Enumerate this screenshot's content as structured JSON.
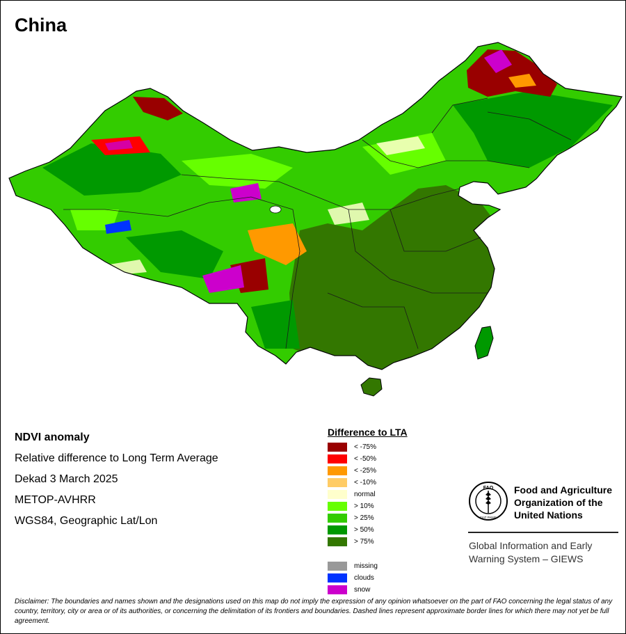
{
  "title": "China",
  "info_lines": [
    "NDVI anomaly",
    "Relative difference to Long Term Average",
    "Dekad 3 March 2025",
    "METOP-AVHRR",
    "WGS84, Geographic Lat/Lon"
  ],
  "legend": {
    "title": "Difference to LTA",
    "classes": [
      {
        "label": "< -75%",
        "color": "#990000"
      },
      {
        "label": "< -50%",
        "color": "#ff0000"
      },
      {
        "label": "< -25%",
        "color": "#ff9900"
      },
      {
        "label": "< -10%",
        "color": "#ffcc66"
      },
      {
        "label": "normal",
        "color": "#ffffcc"
      },
      {
        "label": "> 10%",
        "color": "#66ff00"
      },
      {
        "label": "> 25%",
        "color": "#33cc00"
      },
      {
        "label": "> 50%",
        "color": "#009900"
      },
      {
        "label": "> 75%",
        "color": "#337700"
      }
    ],
    "other": [
      {
        "label": "missing",
        "color": "#999999"
      },
      {
        "label": "clouds",
        "color": "#0033ff"
      },
      {
        "label": "snow",
        "color": "#cc00cc"
      }
    ]
  },
  "organization": {
    "logo_text": "FAO",
    "logo_motto": "FIAT PANIS",
    "name_lines": [
      "Food and Agriculture",
      "Organization of the",
      "United Nations"
    ],
    "program_lines": [
      "Global Information and Early",
      "Warning System – GIEWS"
    ]
  },
  "disclaimer": "Disclaimer: The boundaries and names shown and the designations used on this map do not imply the expression of any opinion whatsoever on the part of FAO concerning the legal status of any country, territory, city or area or of its authorities, or concerning the delimitation of its frontiers and boundaries. Dashed lines represent approximate border lines for which there may not yet be full agreement.",
  "colors": {
    "land_bright": "#33cc00",
    "land_dark": "#337700",
    "land_light": "#66ff00",
    "dry_red": "#990000",
    "snow": "#cc00cc",
    "normal": "#ffffcc",
    "border": "#000000"
  }
}
